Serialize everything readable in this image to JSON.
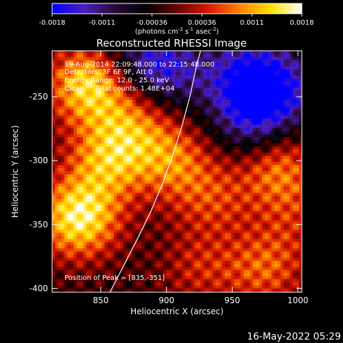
{
  "chart_data": {
    "type": "heatmap",
    "title": "Reconstructed RHESSI Image",
    "xlabel": "Heliocentric X (arcsec)",
    "ylabel": "Heliocentric Y (arcsec)",
    "xlim": [
      813,
      1003
    ],
    "ylim": [
      -403,
      -214
    ],
    "xticks": [
      850,
      900,
      950,
      1000
    ],
    "yticks": [
      -250,
      -300,
      -350,
      -400
    ],
    "colorbar": {
      "ticks": [
        "-0.0018",
        "-0.0011",
        "-0.00036",
        "0.00036",
        "0.0011",
        "0.0018"
      ],
      "range": [
        -0.0018,
        0.0018
      ],
      "unit_label_parts": [
        "(photons cm",
        "-2",
        " s",
        "-1",
        " asec",
        "-2",
        ")"
      ],
      "colors": [
        "#0000ff",
        "#4b1fc0",
        "#2a0a3a",
        "#000000",
        "#6a0000",
        "#d81800",
        "#ff8000",
        "#ffe000",
        "#ffffff"
      ]
    },
    "annotations": [
      "19-Aug-2014 22:09:48.000 to 22:15:48.000",
      "Detectors: 3F 6F 9F, Att 0",
      "Energy Range: 12.0 - 25.0 keV",
      "Clean     Total counts: 1.48E+04"
    ],
    "peak_text": "Position of Peak = [835,-351]",
    "peak": [
      835,
      -351
    ],
    "limb_points": [
      [
        857,
        -403
      ],
      [
        868,
        -381
      ],
      [
        878,
        -361
      ],
      [
        888,
        -340
      ],
      [
        897,
        -318
      ],
      [
        905,
        -295
      ],
      [
        912,
        -272
      ],
      [
        918,
        -249
      ],
      [
        923,
        -225
      ],
      [
        927,
        -210
      ]
    ],
    "emission_sources": [
      {
        "x": 840,
        "y": -240,
        "value": 0.0016
      },
      {
        "x": 833,
        "y": -345,
        "value": 0.0018
      },
      {
        "x": 855,
        "y": -300,
        "value": 0.0012
      },
      {
        "x": 875,
        "y": -270,
        "value": 0.0009
      },
      {
        "x": 905,
        "y": -300,
        "value": 0.001
      },
      {
        "x": 935,
        "y": -330,
        "value": 0.0007
      },
      {
        "x": 925,
        "y": -385,
        "value": 0.0006
      },
      {
        "x": 985,
        "y": -305,
        "value": 0.0011
      },
      {
        "x": 975,
        "y": -385,
        "value": 0.0009
      },
      {
        "x": 1000,
        "y": -345,
        "value": 0.0005
      }
    ],
    "background_values": [
      {
        "x": 900,
        "y": -230,
        "value": -0.001
      },
      {
        "x": 960,
        "y": -235,
        "value": -0.0012
      },
      {
        "x": 985,
        "y": -245,
        "value": -0.0011
      },
      {
        "x": 965,
        "y": -270,
        "value": -0.0009
      },
      {
        "x": 880,
        "y": -215,
        "value": -0.0006
      }
    ]
  },
  "footer": {
    "timestamp": "16-May-2022 05:29"
  }
}
